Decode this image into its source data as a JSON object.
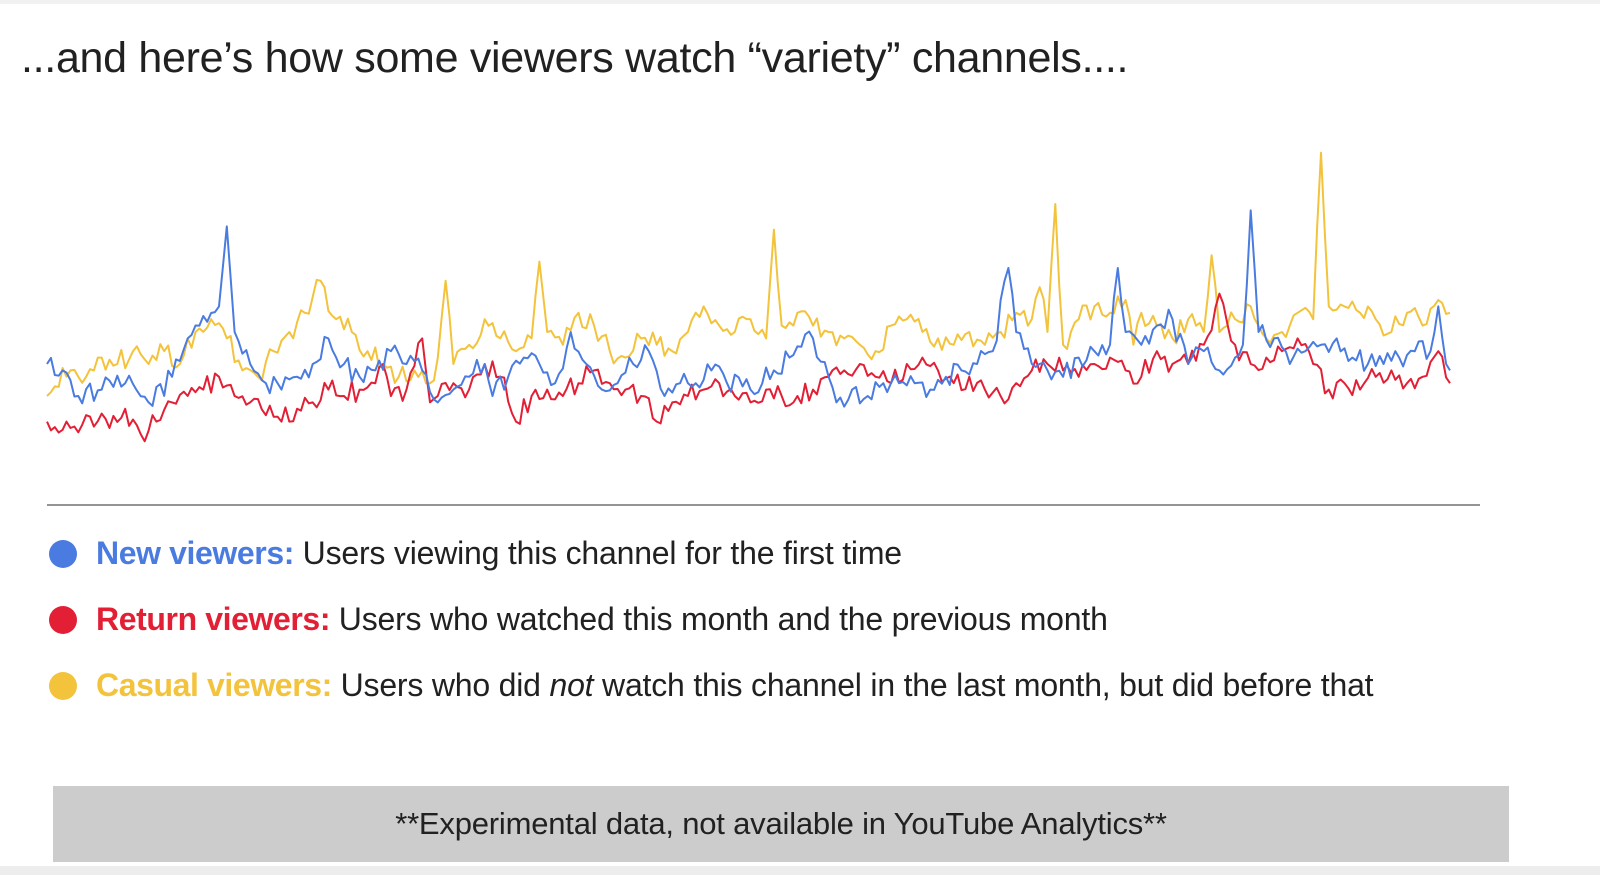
{
  "title": "...and here’s how some viewers watch “variety” channels....",
  "legend": [
    {
      "name": "New viewers:",
      "desc_pre": " Users viewing this channel for the first time",
      "desc_em": "",
      "desc_post": "",
      "color": "#4a7be0"
    },
    {
      "name": "Return viewers:",
      "desc_pre": " Users who watched this month and the previous month",
      "desc_em": "",
      "desc_post": "",
      "color": "#e21f35"
    },
    {
      "name": "Casual viewers:",
      "desc_pre": " Users who did ",
      "desc_em": "not",
      "desc_post": " watch this channel in the last month, but did before that",
      "color": "#f3c33c"
    }
  ],
  "note": "**Experimental data, not available in YouTube Analytics**",
  "chart_data": {
    "type": "line",
    "title": "",
    "xlabel": "",
    "ylabel": "",
    "x_ticks_labeled": false,
    "y_ticks_labeled": false,
    "points_per_series": 360,
    "ylim": [
      0,
      100
    ],
    "grid": false,
    "baseline": true,
    "series": [
      {
        "name": "New viewers",
        "color": "#4a7be0",
        "anchors": [
          [
            0,
            30
          ],
          [
            4,
            28
          ],
          [
            8,
            20
          ],
          [
            14,
            22
          ],
          [
            20,
            24
          ],
          [
            26,
            18
          ],
          [
            32,
            26
          ],
          [
            36,
            38
          ],
          [
            40,
            45
          ],
          [
            44,
            48
          ],
          [
            46,
            73
          ],
          [
            48,
            40
          ],
          [
            52,
            30
          ],
          [
            56,
            24
          ],
          [
            60,
            22
          ],
          [
            64,
            26
          ],
          [
            68,
            30
          ],
          [
            72,
            38
          ],
          [
            76,
            30
          ],
          [
            80,
            26
          ],
          [
            84,
            28
          ],
          [
            88,
            34
          ],
          [
            92,
            30
          ],
          [
            96,
            28
          ],
          [
            100,
            18
          ],
          [
            104,
            22
          ],
          [
            108,
            26
          ],
          [
            112,
            30
          ],
          [
            114,
            20
          ],
          [
            118,
            26
          ],
          [
            122,
            32
          ],
          [
            126,
            30
          ],
          [
            130,
            24
          ],
          [
            134,
            40
          ],
          [
            138,
            30
          ],
          [
            142,
            22
          ],
          [
            146,
            24
          ],
          [
            150,
            30
          ],
          [
            154,
            34
          ],
          [
            158,
            20
          ],
          [
            162,
            24
          ],
          [
            166,
            24
          ],
          [
            170,
            28
          ],
          [
            174,
            24
          ],
          [
            180,
            22
          ],
          [
            186,
            28
          ],
          [
            190,
            32
          ],
          [
            196,
            38
          ],
          [
            200,
            26
          ],
          [
            202,
            18
          ],
          [
            206,
            22
          ],
          [
            210,
            20
          ],
          [
            214,
            24
          ],
          [
            218,
            24
          ],
          [
            222,
            24
          ],
          [
            226,
            22
          ],
          [
            230,
            26
          ],
          [
            234,
            28
          ],
          [
            238,
            30
          ],
          [
            242,
            34
          ],
          [
            246,
            60
          ],
          [
            248,
            40
          ],
          [
            252,
            30
          ],
          [
            256,
            28
          ],
          [
            260,
            26
          ],
          [
            264,
            32
          ],
          [
            268,
            34
          ],
          [
            272,
            36
          ],
          [
            274,
            60
          ],
          [
            276,
            40
          ],
          [
            280,
            36
          ],
          [
            284,
            42
          ],
          [
            288,
            44
          ],
          [
            292,
            30
          ],
          [
            296,
            34
          ],
          [
            300,
            28
          ],
          [
            304,
            32
          ],
          [
            306,
            36
          ],
          [
            308,
            78
          ],
          [
            310,
            40
          ],
          [
            314,
            38
          ],
          [
            318,
            30
          ],
          [
            322,
            34
          ],
          [
            326,
            36
          ],
          [
            330,
            38
          ],
          [
            334,
            32
          ],
          [
            338,
            30
          ],
          [
            342,
            30
          ],
          [
            346,
            32
          ],
          [
            350,
            34
          ],
          [
            354,
            34
          ],
          [
            356,
            48
          ],
          [
            358,
            30
          ],
          [
            359,
            28
          ]
        ]
      },
      {
        "name": "Return viewers",
        "color": "#e21f35",
        "anchors": [
          [
            0,
            12
          ],
          [
            6,
            10
          ],
          [
            10,
            14
          ],
          [
            16,
            10
          ],
          [
            20,
            16
          ],
          [
            24,
            8
          ],
          [
            28,
            12
          ],
          [
            32,
            18
          ],
          [
            36,
            20
          ],
          [
            40,
            22
          ],
          [
            44,
            26
          ],
          [
            48,
            20
          ],
          [
            52,
            18
          ],
          [
            56,
            14
          ],
          [
            60,
            12
          ],
          [
            64,
            16
          ],
          [
            68,
            18
          ],
          [
            72,
            22
          ],
          [
            76,
            20
          ],
          [
            80,
            22
          ],
          [
            84,
            24
          ],
          [
            86,
            30
          ],
          [
            88,
            20
          ],
          [
            92,
            22
          ],
          [
            96,
            38
          ],
          [
            98,
            18
          ],
          [
            100,
            20
          ],
          [
            104,
            24
          ],
          [
            108,
            22
          ],
          [
            112,
            30
          ],
          [
            116,
            26
          ],
          [
            120,
            12
          ],
          [
            124,
            20
          ],
          [
            128,
            22
          ],
          [
            132,
            20
          ],
          [
            136,
            24
          ],
          [
            140,
            28
          ],
          [
            144,
            24
          ],
          [
            148,
            22
          ],
          [
            152,
            20
          ],
          [
            156,
            12
          ],
          [
            160,
            18
          ],
          [
            164,
            20
          ],
          [
            168,
            22
          ],
          [
            172,
            24
          ],
          [
            176,
            20
          ],
          [
            180,
            18
          ],
          [
            184,
            22
          ],
          [
            188,
            20
          ],
          [
            192,
            20
          ],
          [
            196,
            22
          ],
          [
            200,
            26
          ],
          [
            204,
            28
          ],
          [
            208,
            30
          ],
          [
            212,
            26
          ],
          [
            216,
            24
          ],
          [
            220,
            30
          ],
          [
            224,
            32
          ],
          [
            228,
            28
          ],
          [
            232,
            24
          ],
          [
            236,
            26
          ],
          [
            240,
            22
          ],
          [
            244,
            20
          ],
          [
            248,
            24
          ],
          [
            252,
            28
          ],
          [
            256,
            30
          ],
          [
            260,
            28
          ],
          [
            264,
            26
          ],
          [
            268,
            30
          ],
          [
            272,
            32
          ],
          [
            276,
            28
          ],
          [
            280,
            26
          ],
          [
            284,
            34
          ],
          [
            288,
            30
          ],
          [
            292,
            30
          ],
          [
            296,
            36
          ],
          [
            300,
            52
          ],
          [
            304,
            36
          ],
          [
            308,
            30
          ],
          [
            312,
            32
          ],
          [
            316,
            34
          ],
          [
            320,
            38
          ],
          [
            324,
            30
          ],
          [
            328,
            22
          ],
          [
            332,
            24
          ],
          [
            336,
            22
          ],
          [
            340,
            26
          ],
          [
            344,
            28
          ],
          [
            348,
            24
          ],
          [
            352,
            26
          ],
          [
            356,
            34
          ],
          [
            359,
            24
          ]
        ]
      },
      {
        "name": "Casual viewers",
        "color": "#f3c33c",
        "anchors": [
          [
            0,
            20
          ],
          [
            6,
            28
          ],
          [
            10,
            26
          ],
          [
            14,
            32
          ],
          [
            18,
            30
          ],
          [
            22,
            34
          ],
          [
            26,
            30
          ],
          [
            30,
            34
          ],
          [
            34,
            30
          ],
          [
            38,
            40
          ],
          [
            42,
            44
          ],
          [
            46,
            38
          ],
          [
            50,
            28
          ],
          [
            54,
            26
          ],
          [
            58,
            34
          ],
          [
            62,
            40
          ],
          [
            66,
            46
          ],
          [
            70,
            56
          ],
          [
            74,
            44
          ],
          [
            78,
            40
          ],
          [
            82,
            34
          ],
          [
            86,
            30
          ],
          [
            90,
            26
          ],
          [
            94,
            28
          ],
          [
            98,
            24
          ],
          [
            100,
            32
          ],
          [
            102,
            56
          ],
          [
            104,
            30
          ],
          [
            108,
            36
          ],
          [
            112,
            44
          ],
          [
            116,
            38
          ],
          [
            120,
            34
          ],
          [
            124,
            38
          ],
          [
            126,
            62
          ],
          [
            128,
            40
          ],
          [
            132,
            36
          ],
          [
            136,
            46
          ],
          [
            140,
            42
          ],
          [
            144,
            34
          ],
          [
            148,
            32
          ],
          [
            152,
            38
          ],
          [
            156,
            36
          ],
          [
            160,
            34
          ],
          [
            164,
            40
          ],
          [
            168,
            48
          ],
          [
            172,
            42
          ],
          [
            176,
            40
          ],
          [
            180,
            44
          ],
          [
            184,
            38
          ],
          [
            186,
            72
          ],
          [
            188,
            42
          ],
          [
            192,
            46
          ],
          [
            196,
            42
          ],
          [
            200,
            40
          ],
          [
            204,
            38
          ],
          [
            208,
            36
          ],
          [
            212,
            34
          ],
          [
            216,
            42
          ],
          [
            220,
            44
          ],
          [
            224,
            40
          ],
          [
            228,
            38
          ],
          [
            232,
            36
          ],
          [
            236,
            40
          ],
          [
            240,
            36
          ],
          [
            244,
            40
          ],
          [
            248,
            46
          ],
          [
            252,
            44
          ],
          [
            254,
            54
          ],
          [
            256,
            40
          ],
          [
            258,
            80
          ],
          [
            260,
            36
          ],
          [
            262,
            40
          ],
          [
            264,
            44
          ],
          [
            268,
            48
          ],
          [
            272,
            46
          ],
          [
            276,
            50
          ],
          [
            278,
            36
          ],
          [
            280,
            46
          ],
          [
            284,
            42
          ],
          [
            288,
            38
          ],
          [
            292,
            44
          ],
          [
            296,
            40
          ],
          [
            298,
            64
          ],
          [
            300,
            40
          ],
          [
            304,
            44
          ],
          [
            308,
            48
          ],
          [
            310,
            42
          ],
          [
            312,
            38
          ],
          [
            316,
            40
          ],
          [
            320,
            46
          ],
          [
            324,
            44
          ],
          [
            326,
            96
          ],
          [
            328,
            48
          ],
          [
            332,
            48
          ],
          [
            336,
            46
          ],
          [
            340,
            44
          ],
          [
            344,
            40
          ],
          [
            348,
            46
          ],
          [
            352,
            42
          ],
          [
            356,
            50
          ],
          [
            359,
            46
          ]
        ]
      }
    ]
  }
}
